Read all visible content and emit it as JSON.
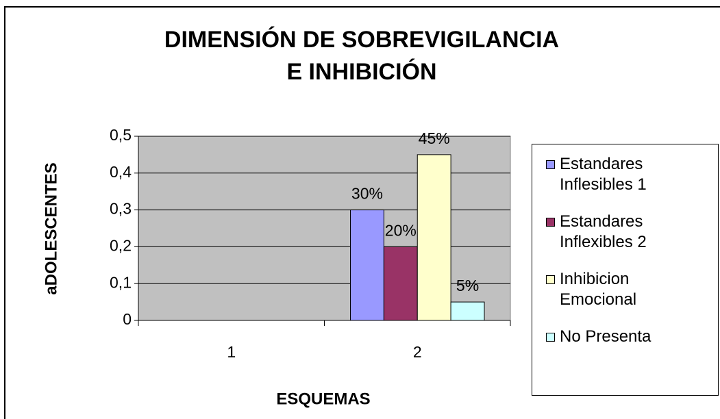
{
  "chart_data": {
    "type": "bar",
    "title": [
      "DIMENSIÓN DE SOBREVIGILANCIA",
      "E INHIBICIÓN"
    ],
    "x_label": "ESQUEMAS",
    "y_label": "aDOLESCENTES",
    "categories": [
      "1",
      "2"
    ],
    "series": [
      {
        "name": "Estandares Inflesibles 1",
        "color": "#9999ff",
        "values": [
          null,
          0.3
        ],
        "value_labels": [
          null,
          "30%"
        ]
      },
      {
        "name": "Estandares Inflexibles 2",
        "color": "#993366",
        "values": [
          null,
          0.2
        ],
        "value_labels": [
          null,
          "20%"
        ]
      },
      {
        "name": "Inhibicion Emocional",
        "color": "#ffffcc",
        "values": [
          null,
          0.45
        ],
        "value_labels": [
          null,
          "45%"
        ]
      },
      {
        "name": "No Presenta",
        "color": "#ccffff",
        "values": [
          null,
          0.05
        ],
        "value_labels": [
          null,
          "5%"
        ]
      }
    ],
    "ylim": [
      0,
      0.5
    ],
    "yticks": [
      0,
      {
        "value": 0.1,
        "label": "0,1"
      },
      {
        "value": 0.2,
        "label": "0,2"
      },
      {
        "value": 0.3,
        "label": "0,3"
      },
      {
        "value": 0.4,
        "label": "0,4"
      },
      {
        "value": 0.5,
        "label": "0,5"
      }
    ],
    "grid": true,
    "plot_background": "#c0c0c0",
    "legend": "right"
  }
}
